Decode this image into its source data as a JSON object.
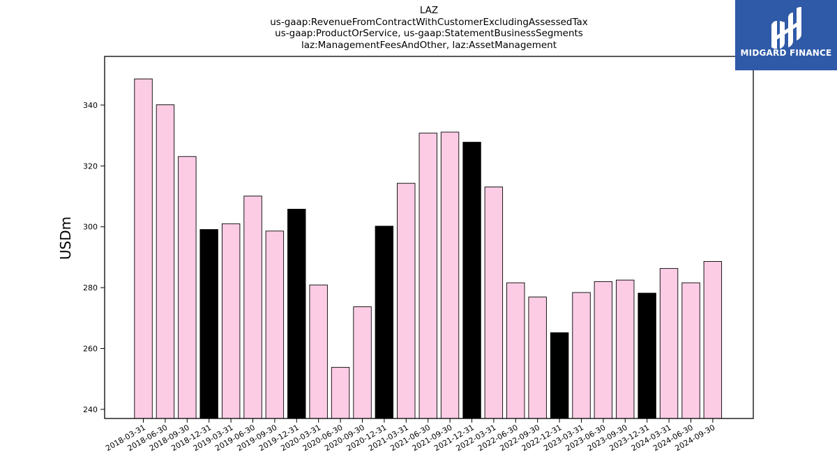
{
  "chart_data": {
    "type": "bar",
    "title_lines": [
      "LAZ",
      "us-gaap:RevenueFromContractWithCustomerExcludingAssessedTax",
      "us-gaap:ProductOrService, us-gaap:StatementBusinessSegments",
      "laz:ManagementFeesAndOther, laz:AssetManagement"
    ],
    "xlabel": "",
    "ylabel": "USDm",
    "ylim": [
      237,
      356
    ],
    "yticks": [
      240,
      260,
      280,
      300,
      320,
      340
    ],
    "grid": false,
    "categories": [
      "2018-03-31",
      "2018-06-30",
      "2018-09-30",
      "2018-12-31",
      "2019-03-31",
      "2019-06-30",
      "2019-09-30",
      "2019-12-31",
      "2020-03-31",
      "2020-06-30",
      "2020-09-30",
      "2020-12-31",
      "2021-03-31",
      "2021-06-30",
      "2021-09-30",
      "2021-12-31",
      "2022-03-31",
      "2022-06-30",
      "2022-09-30",
      "2022-12-31",
      "2023-03-31",
      "2023-06-30",
      "2023-09-30",
      "2023-12-31",
      "2024-03-31",
      "2024-06-30",
      "2024-09-30"
    ],
    "values": [
      348.6,
      340.1,
      323.1,
      299.1,
      301.0,
      310.1,
      298.6,
      305.8,
      280.9,
      253.8,
      273.7,
      300.2,
      314.3,
      330.8,
      331.1,
      327.8,
      313.1,
      281.6,
      276.9,
      265.2,
      278.4,
      282.0,
      282.5,
      278.2,
      286.3,
      281.6,
      288.6
    ],
    "colors": {
      "quarter": "#fccce4",
      "year_end": "#000000",
      "edge": "#000000"
    },
    "year_end_categories": [
      "2018-12-31",
      "2019-12-31",
      "2020-12-31",
      "2021-12-31",
      "2022-12-31",
      "2023-12-31"
    ]
  },
  "logo": {
    "text": "MIDGARD FINANCE",
    "background": "#2f5aa8",
    "icon": "midgard-logo-icon"
  }
}
